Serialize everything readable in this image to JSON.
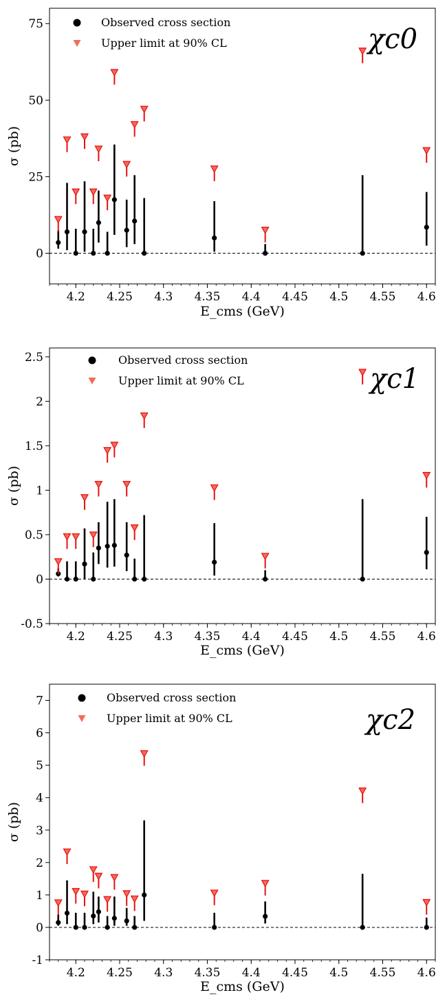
{
  "colors": {
    "observed": "#000000",
    "upper_limit_fill": "#f26b5b",
    "upper_limit_edge": "#e8100f",
    "zero_line": "#000000"
  },
  "legend": {
    "observed": "Observed cross section",
    "upper_limit": "Upper limit at 90% CL"
  },
  "chart_data": [
    {
      "type": "scatter",
      "panel_label": "χc0",
      "xlabel": "E_cms (GeV)",
      "ylabel": "σ (pb)",
      "xlim": [
        4.17,
        4.61
      ],
      "ylim": [
        -10,
        80
      ],
      "xticks": [
        4.2,
        4.25,
        4.3,
        4.35,
        4.4,
        4.45,
        4.5,
        4.55,
        4.6
      ],
      "yticks": [
        0,
        25,
        50,
        75
      ],
      "legend_position": "top-left",
      "observed": [
        {
          "x": 4.18,
          "y": 3.5,
          "lo": 1.5,
          "hi": 7.5
        },
        {
          "x": 4.19,
          "y": 7.0,
          "lo": 1.0,
          "hi": 23.0
        },
        {
          "x": 4.2,
          "y": 0.0,
          "lo": 0.0,
          "hi": 8.0
        },
        {
          "x": 4.21,
          "y": 7.0,
          "lo": 0.5,
          "hi": 23.5
        },
        {
          "x": 4.22,
          "y": 0.0,
          "lo": 0.0,
          "hi": 8.0
        },
        {
          "x": 4.226,
          "y": 10.0,
          "lo": 3.5,
          "hi": 20.5
        },
        {
          "x": 4.236,
          "y": 0.0,
          "lo": 0.0,
          "hi": 7.0
        },
        {
          "x": 4.244,
          "y": 17.5,
          "lo": 6.0,
          "hi": 35.5
        },
        {
          "x": 4.258,
          "y": 7.5,
          "lo": 2.0,
          "hi": 17.5
        },
        {
          "x": 4.267,
          "y": 10.5,
          "lo": 3.0,
          "hi": 25.5
        },
        {
          "x": 4.278,
          "y": 0.0,
          "lo": 0.0,
          "hi": 18.0
        },
        {
          "x": 4.358,
          "y": 5.0,
          "lo": 0.5,
          "hi": 17.0
        },
        {
          "x": 4.416,
          "y": 0.0,
          "lo": 0.0,
          "hi": 3.0
        },
        {
          "x": 4.527,
          "y": 0.0,
          "lo": 0.0,
          "hi": 25.5
        },
        {
          "x": 4.6,
          "y": 8.5,
          "lo": 2.5,
          "hi": 20.0
        }
      ],
      "upper_limits": [
        {
          "x": 4.18,
          "y": 12.0
        },
        {
          "x": 4.19,
          "y": 38.0
        },
        {
          "x": 4.2,
          "y": 21.0
        },
        {
          "x": 4.21,
          "y": 39.0
        },
        {
          "x": 4.22,
          "y": 21.0
        },
        {
          "x": 4.226,
          "y": 35.0
        },
        {
          "x": 4.236,
          "y": 19.0
        },
        {
          "x": 4.244,
          "y": 60.0
        },
        {
          "x": 4.258,
          "y": 30.0
        },
        {
          "x": 4.267,
          "y": 43.0
        },
        {
          "x": 4.278,
          "y": 48.0
        },
        {
          "x": 4.358,
          "y": 28.5
        },
        {
          "x": 4.416,
          "y": 8.5
        },
        {
          "x": 4.527,
          "y": 67.0
        },
        {
          "x": 4.6,
          "y": 34.5
        }
      ]
    },
    {
      "type": "scatter",
      "panel_label": "χc1",
      "xlabel": "E_cms (GeV)",
      "ylabel": "σ (pb)",
      "xlim": [
        4.17,
        4.61
      ],
      "ylim": [
        -0.5,
        2.6
      ],
      "xticks": [
        4.2,
        4.25,
        4.3,
        4.35,
        4.4,
        4.45,
        4.5,
        4.55,
        4.6
      ],
      "yticks": [
        -0.5,
        0.0,
        0.5,
        1.0,
        1.5,
        2.0,
        2.5
      ],
      "legend_position": "top-left",
      "observed": [
        {
          "x": 4.18,
          "y": 0.06,
          "lo": 0.03,
          "hi": 0.12
        },
        {
          "x": 4.19,
          "y": 0.0,
          "lo": 0.0,
          "hi": 0.2
        },
        {
          "x": 4.2,
          "y": 0.0,
          "lo": 0.0,
          "hi": 0.2
        },
        {
          "x": 4.21,
          "y": 0.17,
          "lo": 0.0,
          "hi": 0.57
        },
        {
          "x": 4.22,
          "y": 0.0,
          "lo": 0.0,
          "hi": 0.3
        },
        {
          "x": 4.226,
          "y": 0.35,
          "lo": 0.17,
          "hi": 0.64
        },
        {
          "x": 4.236,
          "y": 0.37,
          "lo": 0.13,
          "hi": 0.87
        },
        {
          "x": 4.244,
          "y": 0.38,
          "lo": 0.14,
          "hi": 0.9
        },
        {
          "x": 4.258,
          "y": 0.27,
          "lo": 0.09,
          "hi": 0.64
        },
        {
          "x": 4.267,
          "y": 0.0,
          "lo": 0.0,
          "hi": 0.23
        },
        {
          "x": 4.278,
          "y": 0.0,
          "lo": 0.0,
          "hi": 0.72
        },
        {
          "x": 4.358,
          "y": 0.19,
          "lo": 0.04,
          "hi": 0.63
        },
        {
          "x": 4.416,
          "y": 0.0,
          "lo": 0.0,
          "hi": 0.1
        },
        {
          "x": 4.527,
          "y": 0.0,
          "lo": 0.0,
          "hi": 0.9
        },
        {
          "x": 4.6,
          "y": 0.3,
          "lo": 0.11,
          "hi": 0.7
        }
      ],
      "upper_limits": [
        {
          "x": 4.18,
          "y": 0.23
        },
        {
          "x": 4.19,
          "y": 0.51
        },
        {
          "x": 4.2,
          "y": 0.51
        },
        {
          "x": 4.21,
          "y": 0.95
        },
        {
          "x": 4.22,
          "y": 0.53
        },
        {
          "x": 4.226,
          "y": 1.1
        },
        {
          "x": 4.236,
          "y": 1.48
        },
        {
          "x": 4.244,
          "y": 1.54
        },
        {
          "x": 4.258,
          "y": 1.1
        },
        {
          "x": 4.267,
          "y": 0.61
        },
        {
          "x": 4.278,
          "y": 1.87
        },
        {
          "x": 4.358,
          "y": 1.06
        },
        {
          "x": 4.416,
          "y": 0.29
        },
        {
          "x": 4.527,
          "y": 2.36
        },
        {
          "x": 4.6,
          "y": 1.2
        }
      ]
    },
    {
      "type": "scatter",
      "panel_label": "χc2",
      "xlabel": "E_cms (GeV)",
      "ylabel": "σ (pb)",
      "xlim": [
        4.17,
        4.61
      ],
      "ylim": [
        -1,
        7.5
      ],
      "xticks": [
        4.2,
        4.25,
        4.3,
        4.35,
        4.4,
        4.45,
        4.5,
        4.55,
        4.6
      ],
      "yticks": [
        -1,
        0,
        1,
        2,
        3,
        4,
        5,
        6,
        7
      ],
      "legend_position": "top-left",
      "observed": [
        {
          "x": 4.18,
          "y": 0.15,
          "lo": 0.05,
          "hi": 0.4
        },
        {
          "x": 4.19,
          "y": 0.44,
          "lo": 0.1,
          "hi": 1.45
        },
        {
          "x": 4.2,
          "y": 0.0,
          "lo": 0.0,
          "hi": 0.45
        },
        {
          "x": 4.21,
          "y": 0.0,
          "lo": 0.0,
          "hi": 0.45
        },
        {
          "x": 4.22,
          "y": 0.35,
          "lo": 0.1,
          "hi": 1.1
        },
        {
          "x": 4.226,
          "y": 0.48,
          "lo": 0.15,
          "hi": 0.95
        },
        {
          "x": 4.236,
          "y": 0.0,
          "lo": 0.0,
          "hi": 0.35
        },
        {
          "x": 4.244,
          "y": 0.28,
          "lo": 0.05,
          "hi": 0.95
        },
        {
          "x": 4.258,
          "y": 0.2,
          "lo": 0.05,
          "hi": 0.6
        },
        {
          "x": 4.267,
          "y": 0.0,
          "lo": 0.0,
          "hi": 0.35
        },
        {
          "x": 4.278,
          "y": 1.0,
          "lo": 0.2,
          "hi": 3.3
        },
        {
          "x": 4.358,
          "y": 0.0,
          "lo": 0.0,
          "hi": 0.45
        },
        {
          "x": 4.416,
          "y": 0.34,
          "lo": 0.12,
          "hi": 0.8
        },
        {
          "x": 4.527,
          "y": 0.0,
          "lo": 0.0,
          "hi": 1.65
        },
        {
          "x": 4.6,
          "y": 0.0,
          "lo": 0.0,
          "hi": 0.3
        }
      ],
      "upper_limits": [
        {
          "x": 4.18,
          "y": 0.85
        },
        {
          "x": 4.19,
          "y": 2.42
        },
        {
          "x": 4.2,
          "y": 1.2
        },
        {
          "x": 4.21,
          "y": 1.12
        },
        {
          "x": 4.22,
          "y": 1.87
        },
        {
          "x": 4.226,
          "y": 1.67
        },
        {
          "x": 4.236,
          "y": 0.95
        },
        {
          "x": 4.244,
          "y": 1.63
        },
        {
          "x": 4.258,
          "y": 1.13
        },
        {
          "x": 4.267,
          "y": 0.97
        },
        {
          "x": 4.278,
          "y": 5.45
        },
        {
          "x": 4.358,
          "y": 1.15
        },
        {
          "x": 4.416,
          "y": 1.45
        },
        {
          "x": 4.527,
          "y": 4.3
        },
        {
          "x": 4.6,
          "y": 0.86
        }
      ]
    }
  ]
}
